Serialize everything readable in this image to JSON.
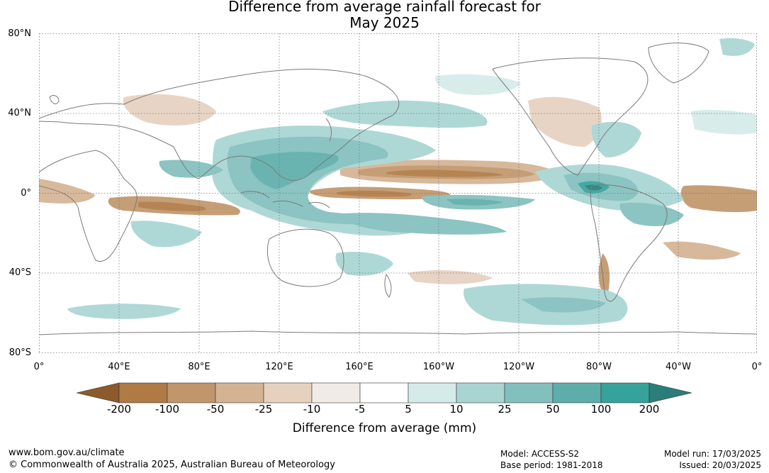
{
  "title_line1": "Difference from average rainfall forecast for",
  "title_line2": "May 2025",
  "map": {
    "lat_labels": [
      "80°N",
      "40°N",
      "0°",
      "40°S",
      "80°S"
    ],
    "lon_labels": [
      "0°",
      "40°E",
      "80°E",
      "120°E",
      "160°E",
      "160°W",
      "120°W",
      "80°W",
      "40°W",
      "0°"
    ],
    "colors": {
      "dry_strong": "#8c5a2b",
      "dry": "#b07a45",
      "wet": "#35a39c",
      "wet_strong": "#2a7d7a",
      "coast": "#7a7a7a",
      "grid": "#777777"
    }
  },
  "colorbar": {
    "title": "Difference from average (mm)",
    "labels": [
      "-200",
      "-100",
      "-50",
      "-25",
      "-10",
      "-5",
      "5",
      "10",
      "25",
      "50",
      "100",
      "200"
    ],
    "colors": [
      "#8c5a2b",
      "#b07a45",
      "#c1966b",
      "#d4b393",
      "#e6d1bf",
      "#f1ebe6",
      "#ffffff",
      "#d5ebe9",
      "#a8d5d2",
      "#82c0bd",
      "#5daeab",
      "#35a39c",
      "#2a7d7a"
    ]
  },
  "footer": {
    "url": "www.bom.gov.au/climate",
    "copyright": "© Commonwealth of Australia 2025, Australian Bureau of Meteorology",
    "model": "Model: ACCESS-S2",
    "base_period": "Base period: 1981-2018",
    "model_run": "Model run: 17/03/2025",
    "issued": "Issued: 20/03/2025"
  }
}
